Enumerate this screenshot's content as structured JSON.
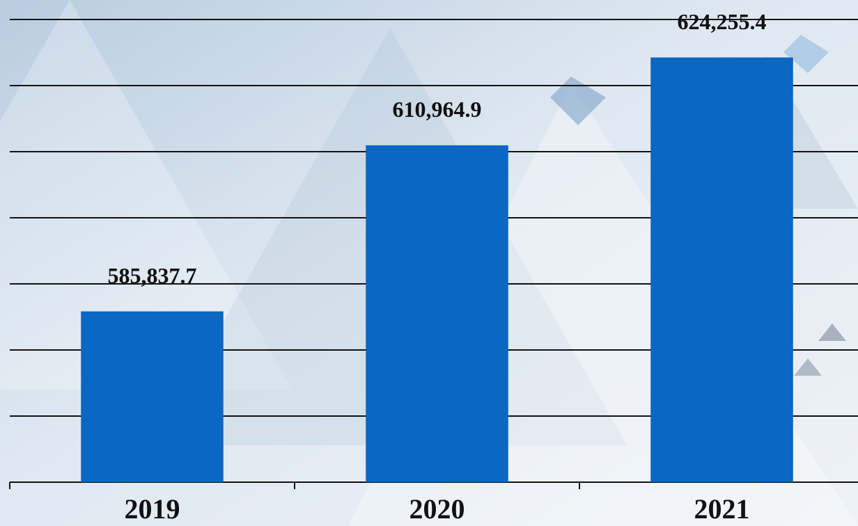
{
  "chart_data": {
    "type": "bar",
    "categories": [
      "2019",
      "2020",
      "2021"
    ],
    "values": [
      585837.7,
      610964.9,
      624255.4
    ],
    "value_labels": [
      "585,837.7",
      "610,964.9",
      "624,255.4"
    ],
    "color": "#0a67c2",
    "ylim": [
      560000,
      630000
    ],
    "yticks": [
      560000,
      570000,
      580000,
      590000,
      600000,
      610000,
      620000,
      630000
    ],
    "grid": true
  }
}
